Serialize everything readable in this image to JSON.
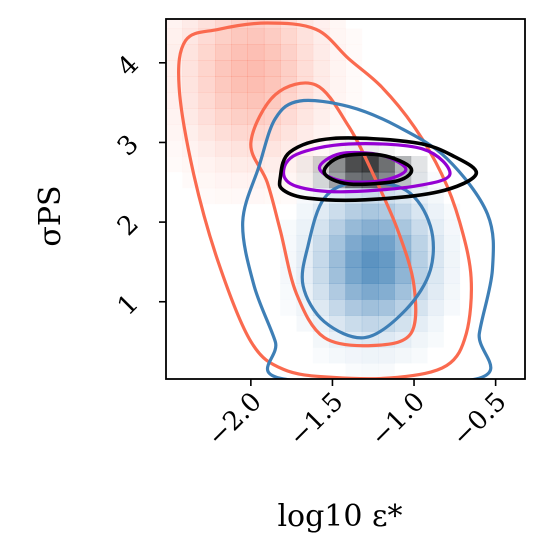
{
  "chart_data": {
    "type": "heatmap",
    "title": "",
    "xlabel": "log10 ε*",
    "ylabel": "σPS",
    "xlim": [
      -2.52,
      -0.32
    ],
    "ylim": [
      0.03,
      4.55
    ],
    "xticks": [
      -2.0,
      -1.5,
      -1.0,
      -0.5
    ],
    "xtick_labels": [
      "−2.0",
      "−1.5",
      "−1.0",
      "−0.5"
    ],
    "yticks": [
      1,
      2,
      3,
      4
    ],
    "ytick_labels": [
      "1",
      "2",
      "3",
      "4"
    ],
    "grid": false,
    "legend": "none",
    "series": [
      {
        "color": "#fa6a4f",
        "density_peak": {
          "x": -2.0,
          "y": 3.9
        },
        "contours": [
          [
            [
              -2.4,
              4.28
            ],
            [
              -2.2,
              4.42
            ],
            [
              -1.9,
              4.5
            ],
            [
              -1.6,
              4.42
            ],
            [
              -1.4,
              4.05
            ],
            [
              -1.2,
              3.7
            ],
            [
              -1.0,
              3.2
            ],
            [
              -0.83,
              2.6
            ],
            [
              -0.72,
              2.0
            ],
            [
              -0.65,
              1.3
            ],
            [
              -0.68,
              0.6
            ],
            [
              -0.8,
              0.2
            ],
            [
              -1.1,
              0.05
            ],
            [
              -1.5,
              0.05
            ],
            [
              -1.8,
              0.15
            ],
            [
              -2.0,
              0.5
            ],
            [
              -2.2,
              1.5
            ],
            [
              -2.35,
              2.6
            ],
            [
              -2.44,
              3.7
            ]
          ],
          [
            [
              -2.0,
              3.0
            ],
            [
              -1.85,
              3.6
            ],
            [
              -1.6,
              3.72
            ],
            [
              -1.4,
              3.2
            ],
            [
              -1.25,
              2.6
            ],
            [
              -1.1,
              1.9
            ],
            [
              -1.0,
              1.2
            ],
            [
              -1.02,
              0.6
            ],
            [
              -1.25,
              0.45
            ],
            [
              -1.55,
              0.55
            ],
            [
              -1.72,
              1.1
            ],
            [
              -1.82,
              1.9
            ],
            [
              -1.9,
              2.5
            ]
          ]
        ]
      },
      {
        "color": "#3e7fb6",
        "density_peak": {
          "x": -1.25,
          "y": 1.5
        },
        "contours": [
          [
            [
              -2.05,
              2.0
            ],
            [
              -1.95,
              2.7
            ],
            [
              -1.85,
              3.3
            ],
            [
              -1.7,
              3.52
            ],
            [
              -1.4,
              3.45
            ],
            [
              -1.1,
              3.2
            ],
            [
              -0.8,
              2.8
            ],
            [
              -0.55,
              2.1
            ],
            [
              -0.52,
              1.4
            ],
            [
              -0.6,
              0.6
            ],
            [
              -0.62,
              0.03
            ],
            [
              -1.8,
              0.03
            ],
            [
              -1.85,
              0.5
            ],
            [
              -1.98,
              1.2
            ]
          ],
          [
            [
              -1.65,
              1.7
            ],
            [
              -1.55,
              2.3
            ],
            [
              -1.35,
              2.5
            ],
            [
              -1.05,
              2.4
            ],
            [
              -0.9,
              1.95
            ],
            [
              -0.9,
              1.4
            ],
            [
              -1.05,
              0.9
            ],
            [
              -1.3,
              0.55
            ],
            [
              -1.55,
              0.75
            ],
            [
              -1.68,
              1.2
            ]
          ]
        ]
      },
      {
        "color": "#9400d3",
        "contours": [
          [
            [
              -1.8,
              2.62
            ],
            [
              -1.72,
              2.85
            ],
            [
              -1.4,
              2.98
            ],
            [
              -0.95,
              2.92
            ],
            [
              -0.78,
              2.6
            ],
            [
              -1.0,
              2.45
            ],
            [
              -1.45,
              2.38
            ],
            [
              -1.72,
              2.45
            ]
          ],
          [
            [
              -1.58,
              2.68
            ],
            [
              -1.45,
              2.86
            ],
            [
              -1.2,
              2.84
            ],
            [
              -1.05,
              2.66
            ],
            [
              -1.2,
              2.52
            ],
            [
              -1.45,
              2.52
            ]
          ]
        ]
      },
      {
        "color": "#000000",
        "density_peak": {
          "x": -1.3,
          "y": 2.65
        },
        "contours": [
          [
            [
              -1.82,
              2.55
            ],
            [
              -1.76,
              2.88
            ],
            [
              -1.5,
              3.05
            ],
            [
              -1.0,
              3.0
            ],
            [
              -0.75,
              2.82
            ],
            [
              -0.62,
              2.6
            ],
            [
              -0.85,
              2.38
            ],
            [
              -1.3,
              2.28
            ],
            [
              -1.65,
              2.3
            ],
            [
              -1.8,
              2.4
            ]
          ],
          [
            [
              -1.55,
              2.62
            ],
            [
              -1.45,
              2.82
            ],
            [
              -1.2,
              2.84
            ],
            [
              -1.02,
              2.68
            ],
            [
              -1.1,
              2.52
            ],
            [
              -1.4,
              2.48
            ]
          ]
        ]
      }
    ]
  }
}
